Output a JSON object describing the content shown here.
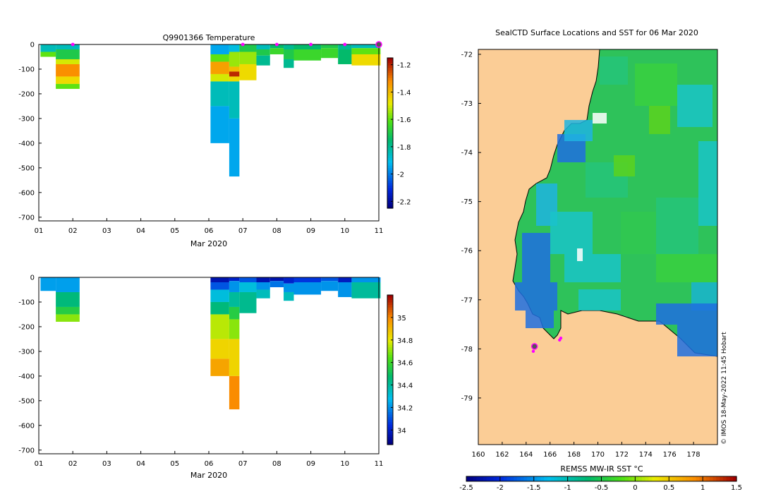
{
  "chart_data": [
    {
      "type": "heatmap",
      "title": "Q9901366  Temperature",
      "xlabel": "Mar 2020",
      "ylabel": "",
      "x_ticks": [
        "01",
        "02",
        "03",
        "04",
        "05",
        "06",
        "07",
        "08",
        "09",
        "10",
        "11"
      ],
      "y_ticks": [
        "0",
        "-100",
        "-200",
        "-300",
        "-400",
        "-500",
        "-600",
        "-700"
      ],
      "xlim": [
        1,
        11
      ],
      "ylim": [
        -715,
        0
      ],
      "colorbar": {
        "ticks": [
          "-1.2",
          "-1.4",
          "-1.6",
          "-1.8",
          "-2",
          "-2.2"
        ],
        "range": [
          -2.25,
          -1.15
        ]
      },
      "profile_markers_days": [
        2.0,
        7.0,
        8.0,
        9.0,
        10.0,
        11.0
      ],
      "columns": [
        {
          "x0": 1.05,
          "x1": 1.5,
          "segments": [
            [
              0,
              -30,
              -1.85
            ],
            [
              -30,
              -50,
              -1.6
            ]
          ]
        },
        {
          "x0": 1.5,
          "x1": 2.2,
          "segments": [
            [
              0,
              -20,
              -1.85
            ],
            [
              -20,
              -60,
              -1.7
            ],
            [
              -60,
              -80,
              -1.5
            ],
            [
              -80,
              -130,
              -1.32
            ],
            [
              -130,
              -160,
              -1.45
            ],
            [
              -160,
              -180,
              -1.6
            ]
          ]
        },
        {
          "x0": 6.05,
          "x1": 6.6,
          "segments": [
            [
              0,
              -40,
              -1.95
            ],
            [
              -40,
              -70,
              -1.6
            ],
            [
              -70,
              -120,
              -1.35
            ],
            [
              -120,
              -150,
              -1.5
            ],
            [
              -150,
              -250,
              -1.85
            ],
            [
              -250,
              -400,
              -1.95
            ]
          ]
        },
        {
          "x0": 6.6,
          "x1": 6.9,
          "segments": [
            [
              0,
              -30,
              -1.9
            ],
            [
              -30,
              -90,
              -1.55
            ],
            [
              -90,
              -110,
              -1.4
            ],
            [
              -110,
              -130,
              -1.2
            ],
            [
              -130,
              -150,
              -1.45
            ],
            [
              -150,
              -300,
              -1.85
            ],
            [
              -300,
              -535,
              -1.95
            ]
          ]
        },
        {
          "x0": 6.9,
          "x1": 7.4,
          "segments": [
            [
              0,
              -30,
              -1.7
            ],
            [
              -30,
              -80,
              -1.55
            ],
            [
              -80,
              -145,
              -1.45
            ]
          ]
        },
        {
          "x0": 7.4,
          "x1": 7.8,
          "segments": [
            [
              0,
              -20,
              -1.85
            ],
            [
              -20,
              -45,
              -1.7
            ],
            [
              -45,
              -85,
              -1.8
            ]
          ]
        },
        {
          "x0": 7.8,
          "x1": 8.2,
          "segments": [
            [
              0,
              -15,
              -1.75
            ],
            [
              -15,
              -40,
              -1.65
            ]
          ]
        },
        {
          "x0": 8.2,
          "x1": 8.5,
          "segments": [
            [
              0,
              -20,
              -1.8
            ],
            [
              -20,
              -60,
              -1.7
            ],
            [
              -60,
              -95,
              -1.8
            ]
          ]
        },
        {
          "x0": 8.5,
          "x1": 9.3,
          "segments": [
            [
              0,
              -20,
              -1.75
            ],
            [
              -20,
              -65,
              -1.65
            ]
          ]
        },
        {
          "x0": 9.3,
          "x1": 9.8,
          "segments": [
            [
              0,
              -15,
              -1.7
            ],
            [
              -15,
              -55,
              -1.65
            ]
          ]
        },
        {
          "x0": 9.8,
          "x1": 10.2,
          "segments": [
            [
              0,
              -20,
              -1.8
            ],
            [
              -20,
              -80,
              -1.75
            ]
          ]
        },
        {
          "x0": 10.2,
          "x1": 11.05,
          "segments": [
            [
              0,
              -15,
              -1.85
            ],
            [
              -15,
              -40,
              -1.6
            ],
            [
              -40,
              -85,
              -1.45
            ]
          ]
        }
      ]
    },
    {
      "type": "heatmap",
      "title": "",
      "xlabel": "Mar 2020",
      "ylabel": "",
      "x_ticks": [
        "01",
        "02",
        "03",
        "04",
        "05",
        "06",
        "07",
        "08",
        "09",
        "10",
        "11"
      ],
      "y_ticks": [
        "0",
        "-100",
        "-200",
        "-300",
        "-400",
        "-500",
        "-600",
        "-700"
      ],
      "xlim": [
        1,
        11
      ],
      "ylim": [
        -715,
        0
      ],
      "colorbar": {
        "ticks": [
          "35",
          "34.8",
          "34.6",
          "34.4",
          "34.2",
          "34"
        ],
        "range": [
          33.87,
          35.2
        ]
      },
      "columns": [
        {
          "x0": 1.05,
          "x1": 1.5,
          "segments": [
            [
              0,
              -55,
              34.22
            ]
          ]
        },
        {
          "x0": 1.5,
          "x1": 2.2,
          "segments": [
            [
              0,
              -60,
              34.22
            ],
            [
              -60,
              -120,
              34.45
            ],
            [
              -120,
              -150,
              34.55
            ],
            [
              -150,
              -180,
              34.7
            ]
          ]
        },
        {
          "x0": 6.05,
          "x1": 6.6,
          "segments": [
            [
              0,
              -20,
              33.95
            ],
            [
              -20,
              -50,
              34.1
            ],
            [
              -50,
              -100,
              34.3
            ],
            [
              -100,
              -150,
              34.45
            ],
            [
              -150,
              -250,
              34.75
            ],
            [
              -250,
              -330,
              34.85
            ],
            [
              -330,
              -400,
              34.95
            ]
          ]
        },
        {
          "x0": 6.6,
          "x1": 6.9,
          "segments": [
            [
              0,
              -15,
              34.0
            ],
            [
              -15,
              -60,
              34.2
            ],
            [
              -60,
              -120,
              34.4
            ],
            [
              -120,
              -170,
              34.55
            ],
            [
              -170,
              -250,
              34.7
            ],
            [
              -250,
              -400,
              34.85
            ],
            [
              -400,
              -535,
              35.0
            ]
          ]
        },
        {
          "x0": 6.9,
          "x1": 7.4,
          "segments": [
            [
              0,
              -20,
              34.1
            ],
            [
              -20,
              -60,
              34.3
            ],
            [
              -60,
              -145,
              34.42
            ]
          ]
        },
        {
          "x0": 7.4,
          "x1": 7.8,
          "segments": [
            [
              0,
              -20,
              33.95
            ],
            [
              -20,
              -50,
              34.2
            ],
            [
              -50,
              -85,
              34.35
            ]
          ]
        },
        {
          "x0": 7.8,
          "x1": 8.2,
          "segments": [
            [
              0,
              -15,
              33.95
            ],
            [
              -15,
              -40,
              34.15
            ]
          ]
        },
        {
          "x0": 8.2,
          "x1": 8.5,
          "segments": [
            [
              0,
              -25,
              34.0
            ],
            [
              -25,
              -60,
              34.2
            ],
            [
              -60,
              -95,
              34.35
            ]
          ]
        },
        {
          "x0": 8.5,
          "x1": 9.3,
          "segments": [
            [
              0,
              -20,
              34.05
            ],
            [
              -20,
              -70,
              34.2
            ]
          ]
        },
        {
          "x0": 9.3,
          "x1": 9.8,
          "segments": [
            [
              0,
              -15,
              34.1
            ],
            [
              -15,
              -55,
              34.2
            ]
          ]
        },
        {
          "x0": 9.8,
          "x1": 10.2,
          "segments": [
            [
              0,
              -20,
              33.98
            ],
            [
              -20,
              -80,
              34.2
            ]
          ]
        },
        {
          "x0": 10.2,
          "x1": 11.05,
          "segments": [
            [
              0,
              -20,
              34.2
            ],
            [
              -20,
              -85,
              34.4
            ]
          ]
        }
      ]
    },
    {
      "type": "heatmap",
      "title": "SealCTD Surface Locations and SST for 06 Mar 2020",
      "xlabel": "",
      "ylabel": "",
      "x_ticks": [
        "160",
        "162",
        "164",
        "166",
        "168",
        "170",
        "172",
        "174",
        "176",
        "178"
      ],
      "y_ticks": [
        "-72",
        "-73",
        "-74",
        "-75",
        "-76",
        "-77",
        "-78",
        "-79"
      ],
      "xlim": [
        160,
        180
      ],
      "ylim": [
        -79.95,
        -71.9
      ],
      "colorbar": {
        "label": "REMSS MW-IR SST °C",
        "ticks": [
          "-2.5",
          "-2",
          "-1.5",
          "-1",
          "-0.5",
          "0",
          "0.5",
          "1",
          "1.5"
        ],
        "range": [
          -2.5,
          1.5
        ]
      },
      "seal_positions": [
        [
          164.7,
          -77.95
        ],
        [
          166.8,
          -77.82
        ],
        [
          166.9,
          -77.78
        ],
        [
          164.6,
          -78.05
        ]
      ],
      "watermark": "© IMOS 18-May-2022 11:45 Hobart"
    }
  ]
}
